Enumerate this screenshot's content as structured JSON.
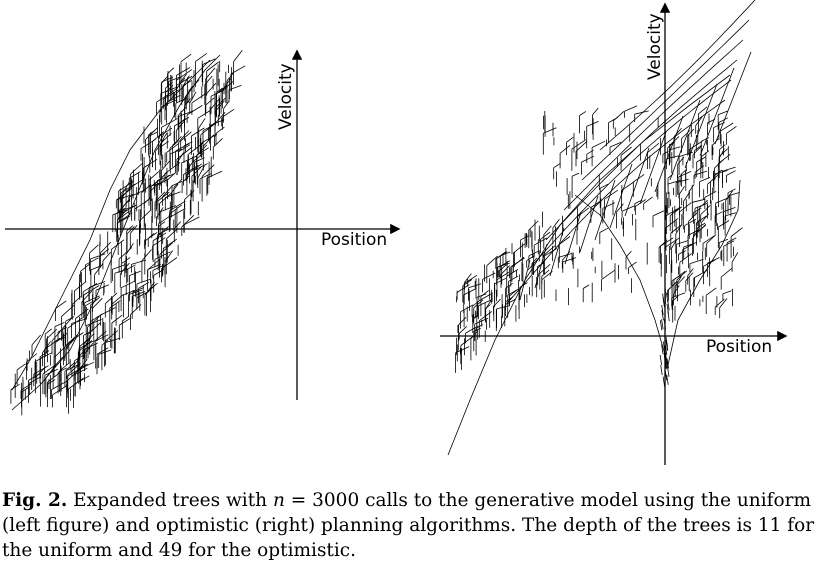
{
  "figure": {
    "left_panel": {
      "x_axis_label": "Position",
      "y_axis_label": "Velocity"
    },
    "right_panel": {
      "x_axis_label": "Position",
      "y_axis_label": "Velocity"
    }
  },
  "caption": {
    "fig_number": "Fig. 2.",
    "line1_a": " Expanded trees with ",
    "line1_var": "n",
    "line1_b": " = 3000 calls to the generative model using the uniform",
    "line2": "(left figure) and optimistic (right) planning algorithms. The depth of the trees is 11 for",
    "line3": "the uniform and 49 for the optimistic."
  }
}
